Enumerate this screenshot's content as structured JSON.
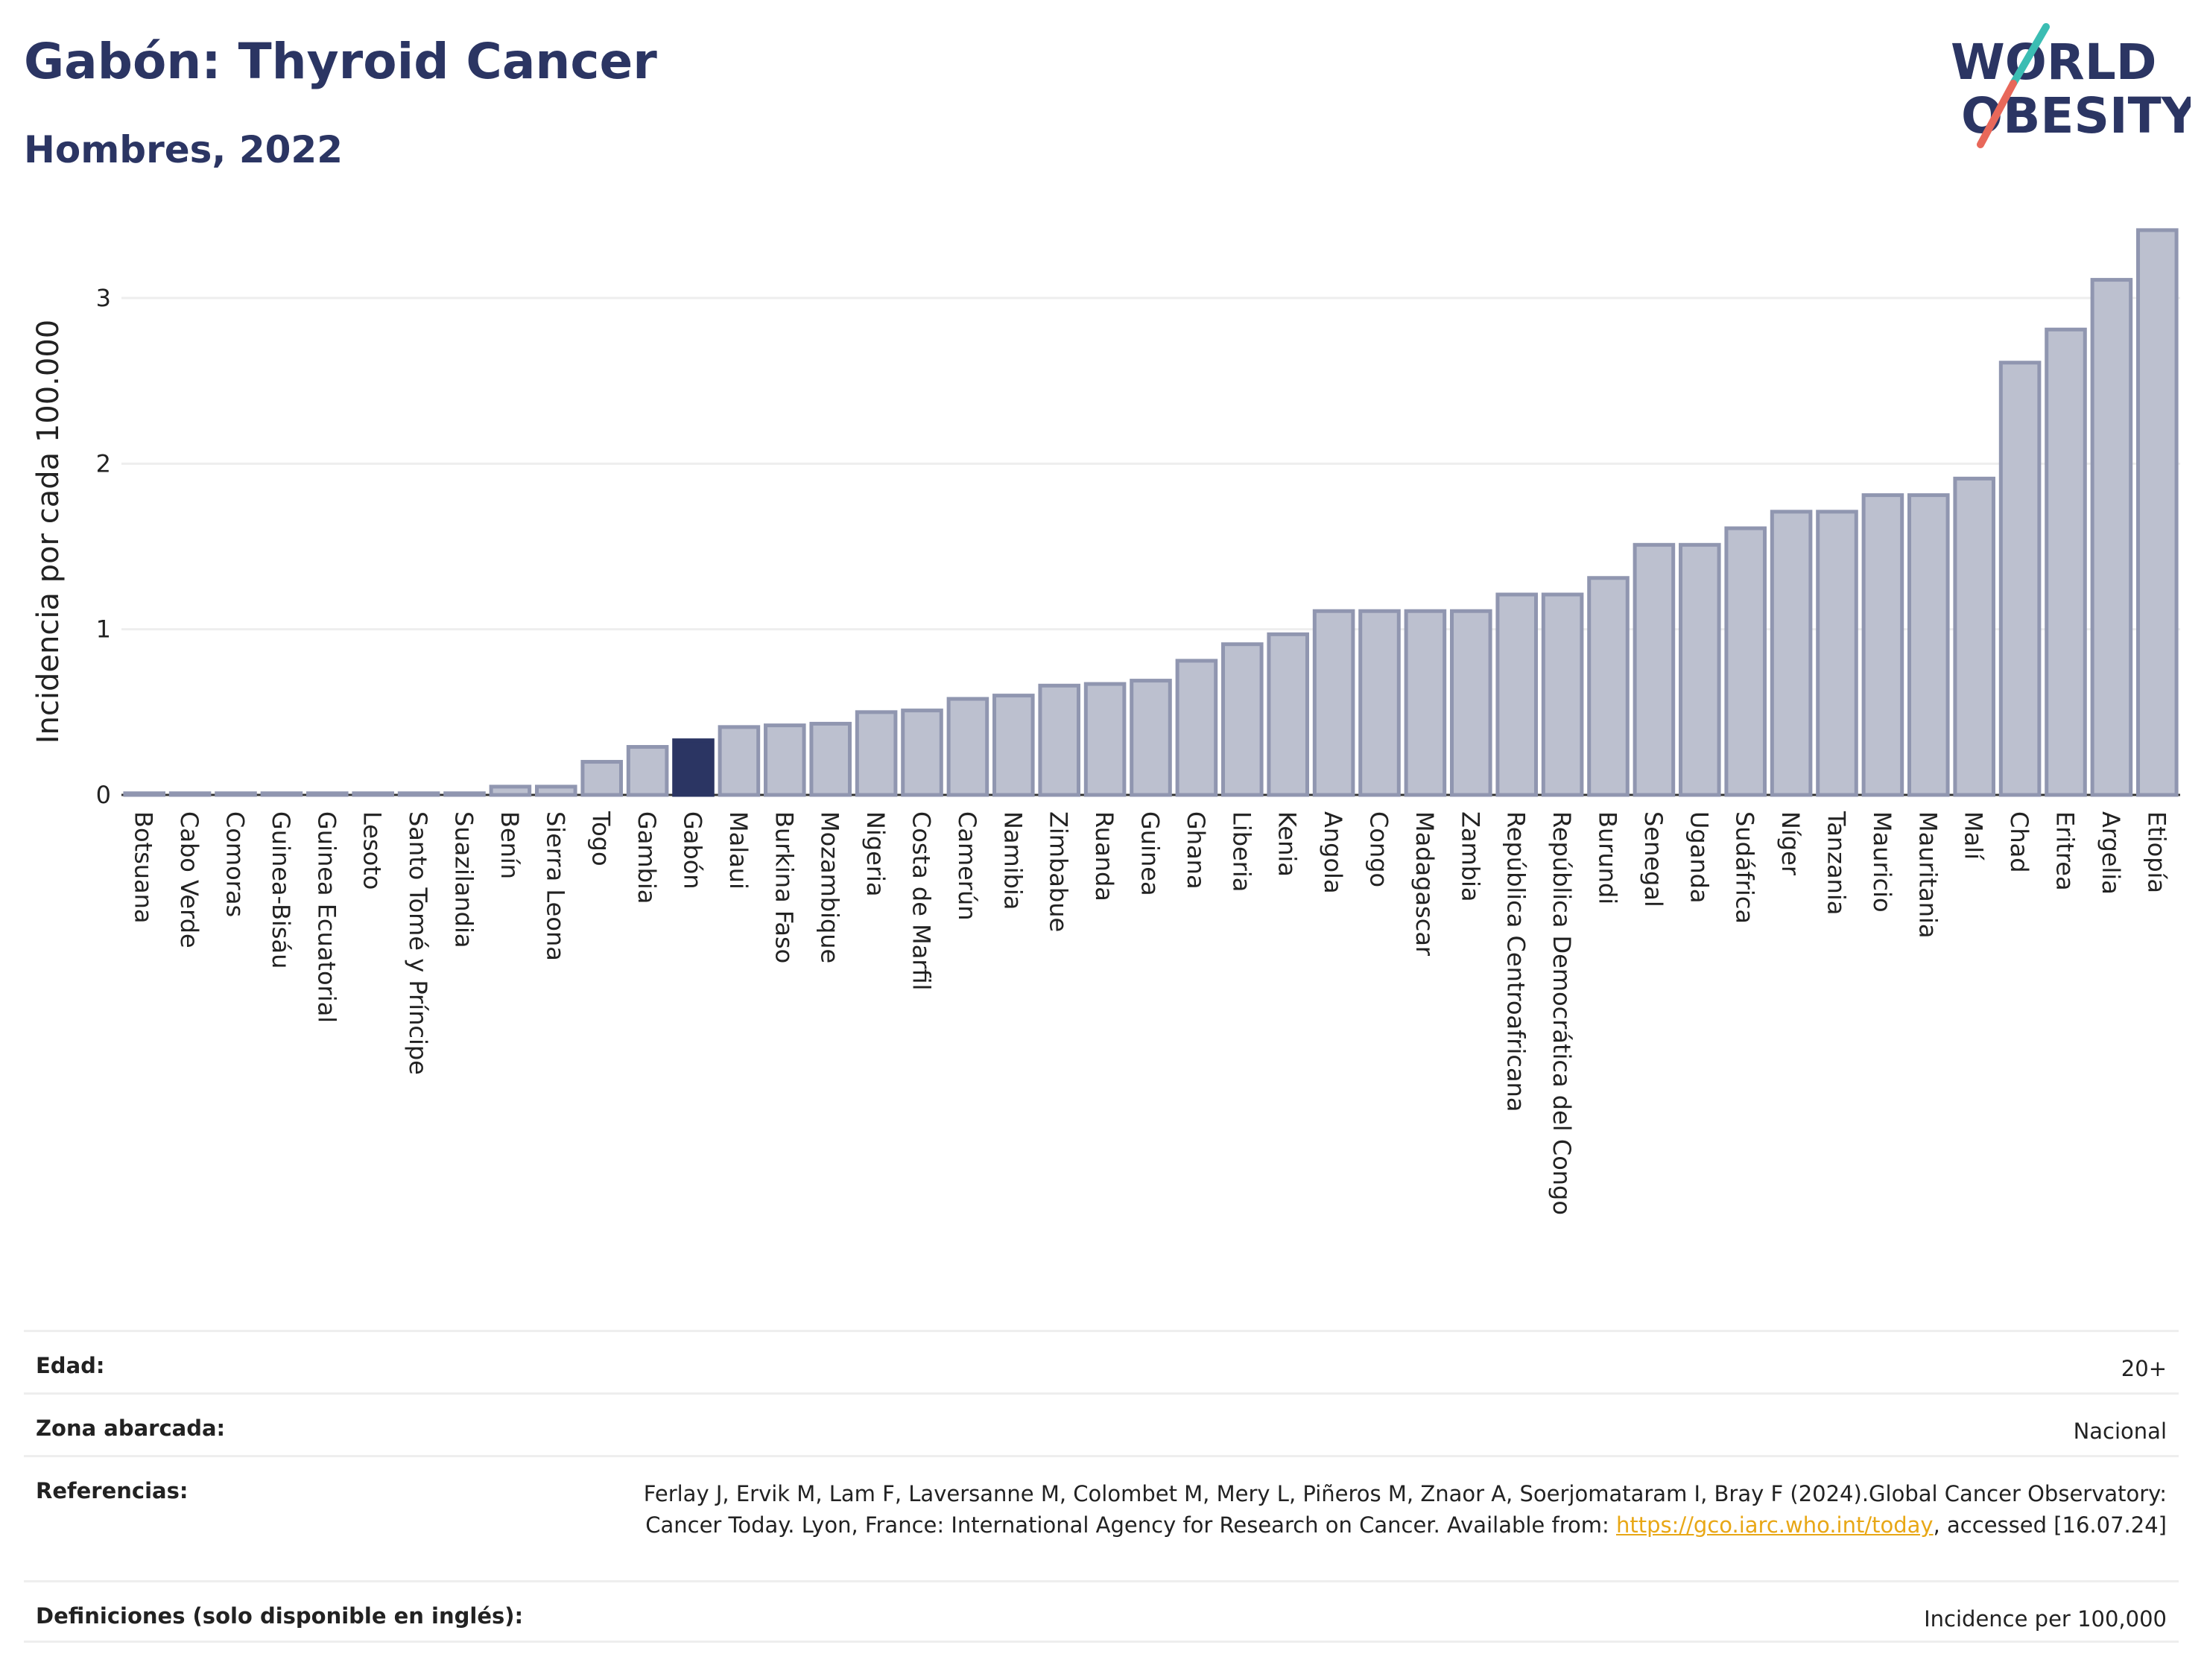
{
  "header": {
    "title": "Gabón: Thyroid Cancer",
    "subtitle": "Hombres, 2022"
  },
  "logo": {
    "line1": "WORLD",
    "line2": "OBESITY",
    "colors": {
      "text": "#2b3563",
      "slash_top": "#3bbdb3",
      "slash_bottom": "#e8685a"
    }
  },
  "colors": {
    "bar_fill": "#bcc0cf",
    "bar_stroke": "#9096b0",
    "highlight_fill": "#2b3563",
    "grid": "#eeeeee",
    "axis": "#333333"
  },
  "chart_data": {
    "type": "bar",
    "title": "Gabón: Thyroid Cancer",
    "subtitle": "Hombres, 2022",
    "ylabel": "Incidencia por cada 100.000",
    "xlabel": "",
    "ylim": [
      0,
      3.45
    ],
    "yticks": [
      0,
      1,
      2,
      3
    ],
    "grid": true,
    "highlight": "Gabón",
    "categories": [
      "Botsuana",
      "Cabo Verde",
      "Comoras",
      "Guinea-Bisáu",
      "Guinea Ecuatorial",
      "Lesoto",
      "Santo Tomé y Príncipe",
      "Suazilandia",
      "Benín",
      "Sierra Leona",
      "Togo",
      "Gambia",
      "Gabón",
      "Malaui",
      "Burkina Faso",
      "Mozambique",
      "Nigeria",
      "Costa de Marfil",
      "Camerún",
      "Namibia",
      "Zimbabue",
      "Ruanda",
      "Guinea",
      "Ghana",
      "Liberia",
      "Kenia",
      "Angola",
      "Congo",
      "Madagascar",
      "Zambia",
      "República Centroafricana",
      "República Democrática del Congo",
      "Burundi",
      "Senegal",
      "Uganda",
      "Sudáfrica",
      "Níger",
      "Tanzania",
      "Mauricio",
      "Mauritania",
      "Malí",
      "Chad",
      "Eritrea",
      "Argelia",
      "Etiopía"
    ],
    "values": [
      0.01,
      0.01,
      0.01,
      0.01,
      0.01,
      0.01,
      0.01,
      0.01,
      0.05,
      0.05,
      0.2,
      0.29,
      0.33,
      0.41,
      0.42,
      0.43,
      0.5,
      0.51,
      0.58,
      0.6,
      0.66,
      0.67,
      0.69,
      0.81,
      0.91,
      0.97,
      1.11,
      1.11,
      1.11,
      1.11,
      1.21,
      1.21,
      1.31,
      1.51,
      1.51,
      1.61,
      1.71,
      1.71,
      1.81,
      1.81,
      1.91,
      2.61,
      2.81,
      3.11,
      3.41
    ]
  },
  "meta": [
    {
      "label": "Edad:",
      "value": "20+"
    },
    {
      "label": "Zona abarcada:",
      "value": "Nacional"
    },
    {
      "label": "Referencias:",
      "value_before": "Ferlay J, Ervik M, Lam F, Laversanne M, Colombet M, Mery L, Piñeros M, Znaor A, Soerjomataram I, Bray F (2024).Global Cancer Observatory: Cancer Today. Lyon, France: International Agency for Research on Cancer. Available from: ",
      "link": "https://gco.iarc.who.int/today",
      "value_after": ", accessed [16.07.24]"
    },
    {
      "label": "Definiciones (solo disponible en inglés):",
      "value": "Incidence per 100,000"
    }
  ]
}
